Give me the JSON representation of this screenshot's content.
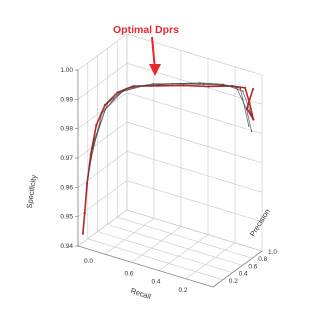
{
  "chart_data": {
    "type": "line",
    "title": "",
    "xlabel": "Recall",
    "ylabel": "Precision",
    "zlabel": "Specificity",
    "x_ticks": [
      "0.0",
      "0.6",
      "0.4",
      "0.2"
    ],
    "y_ticks": [
      "0.2",
      "0.4",
      "0.6",
      "0.8",
      "1.0"
    ],
    "z_ticks": [
      "1.00",
      "0.99",
      "0.98",
      "0.97",
      "0.96",
      "0.95",
      "0.94"
    ],
    "xlim": [
      0.0,
      1.0
    ],
    "ylim": [
      0.0,
      1.0
    ],
    "zlim": [
      0.94,
      1.0
    ],
    "grid": true,
    "annotation": "Optimal Dprs",
    "annotation_point": {
      "recall": 0.7,
      "precision": 0.3,
      "specificity": 0.995
    },
    "colors": {
      "annotation": "#e8272e",
      "curve": "#b8262a",
      "curve_gray": "#444444",
      "grid": "#c8c8c8",
      "axis": "#8a8a8a"
    },
    "series": [
      {
        "points": [
          {
            "recall": 1.0,
            "precision": 0.1,
            "specificity": 0.943
          },
          {
            "recall": 0.99,
            "precision": 0.11,
            "specificity": 0.95
          },
          {
            "recall": 0.98,
            "precision": 0.13,
            "specificity": 0.96
          },
          {
            "recall": 0.96,
            "precision": 0.15,
            "specificity": 0.97
          },
          {
            "recall": 0.93,
            "precision": 0.18,
            "specificity": 0.98
          },
          {
            "recall": 0.88,
            "precision": 0.22,
            "specificity": 0.987
          },
          {
            "recall": 0.8,
            "precision": 0.26,
            "specificity": 0.992
          },
          {
            "recall": 0.7,
            "precision": 0.3,
            "specificity": 0.995
          },
          {
            "recall": 0.55,
            "precision": 0.4,
            "specificity": 0.996
          },
          {
            "recall": 0.4,
            "precision": 0.5,
            "specificity": 0.997
          },
          {
            "recall": 0.25,
            "precision": 0.6,
            "specificity": 0.9975
          },
          {
            "recall": 0.12,
            "precision": 0.72,
            "specificity": 0.998
          },
          {
            "recall": 0.06,
            "precision": 0.82,
            "specificity": 0.997
          },
          {
            "recall": 0.04,
            "precision": 0.85,
            "specificity": 0.992
          },
          {
            "recall": 0.02,
            "precision": 0.88,
            "specificity": 0.986
          },
          {
            "recall": 0.05,
            "precision": 0.83,
            "specificity": 0.99
          },
          {
            "recall": 0.03,
            "precision": 0.9,
            "specificity": 0.996
          }
        ]
      },
      {
        "points": [
          {
            "recall": 0.98,
            "precision": 0.13,
            "specificity": 0.96
          },
          {
            "recall": 0.94,
            "precision": 0.17,
            "specificity": 0.975
          },
          {
            "recall": 0.86,
            "precision": 0.22,
            "specificity": 0.988
          },
          {
            "recall": 0.74,
            "precision": 0.27,
            "specificity": 0.994
          },
          {
            "recall": 0.58,
            "precision": 0.38,
            "specificity": 0.9965
          },
          {
            "recall": 0.42,
            "precision": 0.48,
            "specificity": 0.9975
          },
          {
            "recall": 0.28,
            "precision": 0.58,
            "specificity": 0.998
          },
          {
            "recall": 0.15,
            "precision": 0.7,
            "specificity": 0.998
          },
          {
            "recall": 0.07,
            "precision": 0.8,
            "specificity": 0.996
          },
          {
            "recall": 0.03,
            "precision": 0.86,
            "specificity": 0.988
          }
        ]
      },
      {
        "points": [
          {
            "recall": 0.95,
            "precision": 0.16,
            "specificity": 0.972
          },
          {
            "recall": 0.87,
            "precision": 0.2,
            "specificity": 0.986
          },
          {
            "recall": 0.76,
            "precision": 0.25,
            "specificity": 0.993
          },
          {
            "recall": 0.62,
            "precision": 0.33,
            "specificity": 0.996
          },
          {
            "recall": 0.46,
            "precision": 0.44,
            "specificity": 0.9975
          },
          {
            "recall": 0.3,
            "precision": 0.56,
            "specificity": 0.9985
          },
          {
            "recall": 0.17,
            "precision": 0.67,
            "specificity": 0.9985
          },
          {
            "recall": 0.08,
            "precision": 0.78,
            "specificity": 0.997
          },
          {
            "recall": 0.04,
            "precision": 0.84,
            "specificity": 0.984
          }
        ]
      },
      {
        "points": [
          {
            "recall": 0.97,
            "precision": 0.15,
            "specificity": 0.966
          },
          {
            "recall": 0.9,
            "precision": 0.21,
            "specificity": 0.984
          },
          {
            "recall": 0.79,
            "precision": 0.26,
            "specificity": 0.992
          },
          {
            "recall": 0.66,
            "precision": 0.31,
            "specificity": 0.9955
          },
          {
            "recall": 0.5,
            "precision": 0.42,
            "specificity": 0.997
          },
          {
            "recall": 0.35,
            "precision": 0.53,
            "specificity": 0.998
          },
          {
            "recall": 0.2,
            "precision": 0.64,
            "specificity": 0.9985
          },
          {
            "recall": 0.1,
            "precision": 0.75,
            "specificity": 0.9975
          },
          {
            "recall": 0.05,
            "precision": 0.82,
            "specificity": 0.99
          },
          {
            "recall": 0.03,
            "precision": 0.87,
            "specificity": 0.982
          }
        ]
      }
    ]
  }
}
